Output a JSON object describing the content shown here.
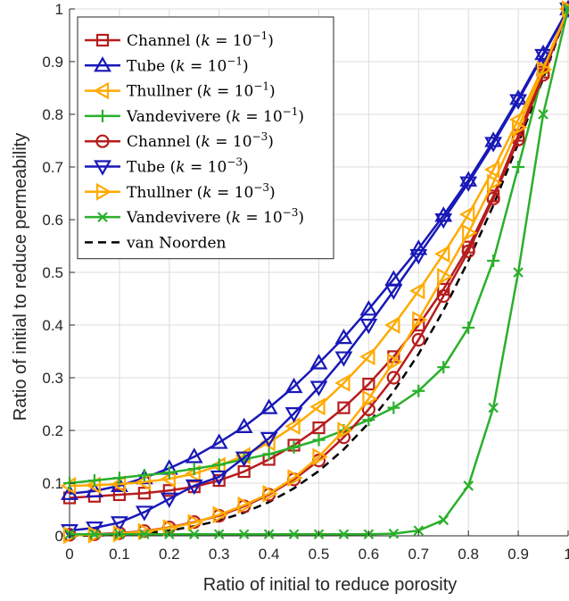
{
  "chart_data": {
    "type": "line",
    "xlabel": "Ratio of initial to reduce porosity",
    "ylabel": "Ratio of initial to reduce permeability",
    "xlim": [
      0,
      1
    ],
    "ylim": [
      0,
      1
    ],
    "grid": true,
    "legend_position": "top-left",
    "x_ticks": [
      0,
      0.1,
      0.2,
      0.3,
      0.4,
      0.5,
      0.6,
      0.7,
      0.8,
      0.9,
      1
    ],
    "y_ticks": [
      0,
      0.1,
      0.2,
      0.3,
      0.4,
      0.5,
      0.6,
      0.7,
      0.8,
      0.9,
      1
    ],
    "x_tick_labels": [
      "0",
      "0.1",
      "0.2",
      "0.3",
      "0.4",
      "0.5",
      "0.6",
      "0.7",
      "0.8",
      "0.9",
      "1"
    ],
    "y_tick_labels": [
      "0",
      "0.1",
      "0.2",
      "0.3",
      "0.4",
      "0.5",
      "0.6",
      "0.7",
      "0.8",
      "0.9",
      "1"
    ],
    "series": [
      {
        "name": "Channel (k = 10⁻¹)",
        "k_exp": "−1",
        "color": "#b71c1c",
        "marker": "square",
        "x": [
          0,
          0.05,
          0.1,
          0.15,
          0.2,
          0.25,
          0.3,
          0.35,
          0.4,
          0.45,
          0.5,
          0.55,
          0.6,
          0.65,
          0.7,
          0.75,
          0.8,
          0.85,
          0.9,
          0.95,
          1
        ],
        "y": [
          0.072,
          0.075,
          0.078,
          0.081,
          0.086,
          0.093,
          0.105,
          0.122,
          0.145,
          0.172,
          0.205,
          0.243,
          0.288,
          0.34,
          0.4,
          0.468,
          0.548,
          0.645,
          0.76,
          0.88,
          1.0
        ]
      },
      {
        "name": "Tube (k = 10⁻¹)",
        "k_exp": "−1",
        "color": "#1818b8",
        "marker": "triangle-up",
        "x": [
          0,
          0.05,
          0.1,
          0.15,
          0.2,
          0.25,
          0.3,
          0.35,
          0.4,
          0.45,
          0.5,
          0.55,
          0.6,
          0.65,
          0.7,
          0.75,
          0.8,
          0.85,
          0.9,
          0.95,
          1
        ],
        "y": [
          0.08,
          0.085,
          0.095,
          0.11,
          0.128,
          0.15,
          0.177,
          0.207,
          0.243,
          0.283,
          0.328,
          0.376,
          0.43,
          0.487,
          0.545,
          0.608,
          0.675,
          0.75,
          0.83,
          0.915,
          1.0
        ]
      },
      {
        "name": "Thullner (k = 10⁻¹)",
        "k_exp": "−1",
        "color": "#ffaa00",
        "marker": "triangle-left",
        "x": [
          0,
          0.05,
          0.1,
          0.15,
          0.2,
          0.25,
          0.3,
          0.35,
          0.4,
          0.45,
          0.5,
          0.55,
          0.6,
          0.65,
          0.7,
          0.75,
          0.8,
          0.85,
          0.9,
          0.95,
          1
        ],
        "y": [
          0.095,
          0.096,
          0.098,
          0.102,
          0.108,
          0.118,
          0.133,
          0.152,
          0.177,
          0.208,
          0.245,
          0.29,
          0.34,
          0.4,
          0.465,
          0.535,
          0.61,
          0.695,
          0.79,
          0.89,
          1.0
        ]
      },
      {
        "name": "Vandevivere (k = 10⁻¹)",
        "k_exp": "−1",
        "color": "#2ab02a",
        "marker": "plus",
        "x": [
          0,
          0.05,
          0.1,
          0.15,
          0.2,
          0.25,
          0.3,
          0.35,
          0.4,
          0.45,
          0.5,
          0.55,
          0.6,
          0.65,
          0.7,
          0.75,
          0.8,
          0.85,
          0.9,
          0.95,
          1
        ],
        "y": [
          0.1,
          0.105,
          0.11,
          0.115,
          0.12,
          0.127,
          0.135,
          0.145,
          0.155,
          0.168,
          0.182,
          0.2,
          0.22,
          0.243,
          0.275,
          0.32,
          0.395,
          0.522,
          0.7,
          0.88,
          1.0
        ]
      },
      {
        "name": "Channel (k = 10⁻³)",
        "k_exp": "−3",
        "color": "#b71c1c",
        "marker": "circle",
        "x": [
          0,
          0.05,
          0.1,
          0.15,
          0.2,
          0.25,
          0.3,
          0.35,
          0.4,
          0.45,
          0.5,
          0.55,
          0.6,
          0.65,
          0.7,
          0.75,
          0.8,
          0.85,
          0.9,
          0.95,
          1
        ],
        "y": [
          0.002,
          0.003,
          0.005,
          0.009,
          0.016,
          0.026,
          0.038,
          0.056,
          0.078,
          0.107,
          0.143,
          0.187,
          0.24,
          0.3,
          0.372,
          0.455,
          0.54,
          0.64,
          0.752,
          0.875,
          1.0
        ]
      },
      {
        "name": "Tube (k = 10⁻³)",
        "k_exp": "−3",
        "color": "#1818b8",
        "marker": "triangle-down",
        "x": [
          0,
          0.05,
          0.1,
          0.15,
          0.2,
          0.25,
          0.3,
          0.35,
          0.4,
          0.45,
          0.5,
          0.55,
          0.6,
          0.65,
          0.7,
          0.75,
          0.8,
          0.85,
          0.9,
          0.95,
          1
        ],
        "y": [
          0.01,
          0.015,
          0.025,
          0.045,
          0.07,
          0.095,
          0.112,
          0.148,
          0.185,
          0.232,
          0.282,
          0.338,
          0.4,
          0.465,
          0.532,
          0.6,
          0.67,
          0.745,
          0.826,
          0.912,
          1.0
        ]
      },
      {
        "name": "Thullner (k = 10⁻³)",
        "k_exp": "−3",
        "color": "#ffaa00",
        "marker": "triangle-right",
        "x": [
          0,
          0.05,
          0.1,
          0.15,
          0.2,
          0.25,
          0.3,
          0.35,
          0.4,
          0.45,
          0.5,
          0.55,
          0.6,
          0.65,
          0.7,
          0.75,
          0.8,
          0.85,
          0.9,
          0.95,
          1
        ],
        "y": [
          0.001,
          0.002,
          0.004,
          0.008,
          0.015,
          0.025,
          0.04,
          0.058,
          0.08,
          0.11,
          0.15,
          0.2,
          0.26,
          0.33,
          0.41,
          0.492,
          0.575,
          0.67,
          0.775,
          0.885,
          1.0
        ]
      },
      {
        "name": "Vandevivere (k = 10⁻³)",
        "k_exp": "−3",
        "color": "#2ab02a",
        "marker": "x",
        "x": [
          0,
          0.05,
          0.1,
          0.15,
          0.2,
          0.25,
          0.3,
          0.35,
          0.4,
          0.45,
          0.5,
          0.55,
          0.6,
          0.65,
          0.7,
          0.75,
          0.8,
          0.85,
          0.9,
          0.95,
          1
        ],
        "y": [
          0.003,
          0.003,
          0.003,
          0.003,
          0.003,
          0.003,
          0.003,
          0.003,
          0.003,
          0.003,
          0.003,
          0.003,
          0.003,
          0.004,
          0.01,
          0.03,
          0.095,
          0.243,
          0.5,
          0.8,
          1.0
        ]
      }
    ],
    "reference": {
      "name": "van Noorden",
      "color": "#000000",
      "style": "dashed",
      "x": [
        0,
        0.05,
        0.1,
        0.15,
        0.2,
        0.25,
        0.3,
        0.35,
        0.4,
        0.45,
        0.5,
        0.55,
        0.6,
        0.65,
        0.7,
        0.75,
        0.8,
        0.85,
        0.9,
        0.95,
        1
      ],
      "y": [
        0.0,
        0.0005,
        0.002,
        0.005,
        0.01,
        0.018,
        0.029,
        0.044,
        0.064,
        0.09,
        0.123,
        0.164,
        0.214,
        0.274,
        0.345,
        0.428,
        0.522,
        0.627,
        0.745,
        0.868,
        1.0
      ]
    }
  }
}
